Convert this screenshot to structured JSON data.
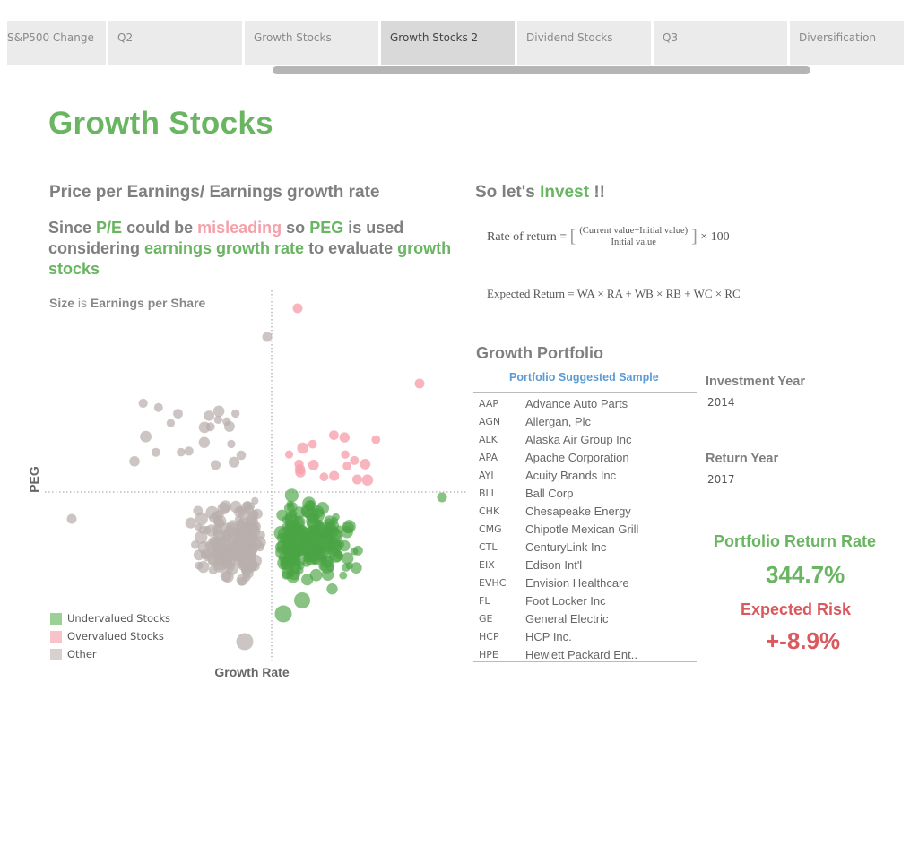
{
  "tabs": [
    {
      "label": "S&P500 Change",
      "active": false
    },
    {
      "label": "Q2",
      "active": false
    },
    {
      "label": "Growth Stocks",
      "active": false
    },
    {
      "label": "Growth Stocks 2",
      "active": true
    },
    {
      "label": "Dividend Stocks",
      "active": false
    },
    {
      "label": "Q3",
      "active": false
    },
    {
      "label": "Diversification",
      "active": false
    }
  ],
  "page_title": "Growth Stocks",
  "left": {
    "section_title": "Price per Earnings/ Earnings growth rate",
    "since": {
      "w1": "Since",
      "pe": "P/E",
      "w2": "could be",
      "misleading": "misleading",
      "w3": "so",
      "peg": "PEG",
      "w4": "is used considering",
      "egr": "earnings growth rate",
      "w5": "to evaluate",
      "gs": "growth stocks"
    },
    "size_note": {
      "size": "Size",
      "is": "is",
      "eps": "Earnings per Share"
    }
  },
  "chart_data": {
    "type": "scatter",
    "title": "",
    "xlabel": "Growth Rate",
    "ylabel": "PEG",
    "size_encoding": "Earnings per Share",
    "reference_lines": "dotted vertical and horizontal lines dividing quadrants",
    "legend": [
      {
        "name": "Undervalued Stocks",
        "color": "#5fae5a"
      },
      {
        "name": "Overvalued Stocks",
        "color": "#f6aeb6"
      },
      {
        "name": "Other",
        "color": "#c8c1bf"
      }
    ],
    "legend_position": "bottom-left",
    "axes_ticks": "none shown"
  },
  "right": {
    "invest_title_a": "So let's",
    "invest_title_b": "Invest",
    "invest_title_c": "!!",
    "formula1": {
      "lhs": "Rate of return =",
      "num": "(Current value−Initial value)",
      "den": "Initial value",
      "mult": "× 100"
    },
    "formula2": "Expected Return = WA × RA + WB × RB + WC × RC",
    "portfolio_title": "Growth Portfolio",
    "sample_title": "Portfolio Suggested Sample",
    "stocks": [
      {
        "sym": "AAP",
        "name": "Advance Auto Parts"
      },
      {
        "sym": "AGN",
        "name": "Allergan, Plc"
      },
      {
        "sym": "ALK",
        "name": "Alaska Air Group Inc"
      },
      {
        "sym": "APA",
        "name": "Apache Corporation"
      },
      {
        "sym": "AYI",
        "name": "Acuity Brands Inc"
      },
      {
        "sym": "BLL",
        "name": "Ball Corp"
      },
      {
        "sym": "CHK",
        "name": "Chesapeake Energy"
      },
      {
        "sym": "CMG",
        "name": "Chipotle Mexican Grill"
      },
      {
        "sym": "CTL",
        "name": "CenturyLink Inc"
      },
      {
        "sym": "EIX",
        "name": "Edison Int'l"
      },
      {
        "sym": "EVHC",
        "name": "Envision Healthcare"
      },
      {
        "sym": "FL",
        "name": "Foot Locker Inc"
      },
      {
        "sym": "GE",
        "name": "General Electric"
      },
      {
        "sym": "HCP",
        "name": "HCP Inc."
      },
      {
        "sym": "HPE",
        "name": "Hewlett Packard Ent.."
      }
    ],
    "investment_year_label": "Investment Year",
    "investment_year": "2014",
    "return_year_label": "Return Year",
    "return_year": "2017",
    "portfolio_return_label": "Portfolio Return Rate",
    "portfolio_return": "344.7%",
    "risk_label": "Expected Risk",
    "risk_value": "+-8.9%"
  },
  "colors": {
    "green": "#69b562",
    "pink": "#f4a0a8",
    "red": "#d9595e",
    "gray_text": "#7f7f7f",
    "blue": "#5b9bd5"
  }
}
